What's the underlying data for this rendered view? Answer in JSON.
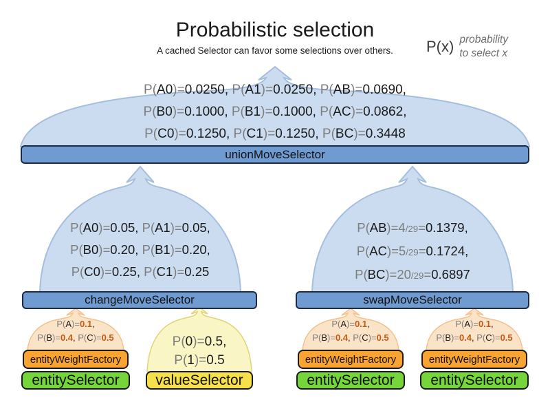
{
  "title": "Probabilistic selection",
  "subtitle": "A cached Selector can favor some selections over others.",
  "legend": {
    "symbol": "P(x)",
    "line1": "probability",
    "line2": "to select x"
  },
  "union": {
    "bar_label": "unionMoveSelector",
    "lines": [
      [
        {
          "t": "P(",
          "c": "g"
        },
        {
          "t": "A0",
          "c": "k"
        },
        {
          "t": ")=",
          "c": "g"
        },
        {
          "t": "0.0250, ",
          "c": "k"
        },
        {
          "t": "P(",
          "c": "g"
        },
        {
          "t": "A1",
          "c": "k"
        },
        {
          "t": ")=",
          "c": "g"
        },
        {
          "t": "0.0250, ",
          "c": "k"
        },
        {
          "t": "P(",
          "c": "g"
        },
        {
          "t": "AB",
          "c": "k"
        },
        {
          "t": ")=",
          "c": "g"
        },
        {
          "t": "0.0690,",
          "c": "k"
        }
      ],
      [
        {
          "t": "P(",
          "c": "g"
        },
        {
          "t": "B0",
          "c": "k"
        },
        {
          "t": ")=",
          "c": "g"
        },
        {
          "t": "0.1000, ",
          "c": "k"
        },
        {
          "t": "P(",
          "c": "g"
        },
        {
          "t": "B1",
          "c": "k"
        },
        {
          "t": ")=",
          "c": "g"
        },
        {
          "t": "0.1000, ",
          "c": "k"
        },
        {
          "t": "P(",
          "c": "g"
        },
        {
          "t": "AC",
          "c": "k"
        },
        {
          "t": ")=",
          "c": "g"
        },
        {
          "t": "0.0862,",
          "c": "k"
        }
      ],
      [
        {
          "t": "P(",
          "c": "g"
        },
        {
          "t": "C0",
          "c": "k"
        },
        {
          "t": ")=",
          "c": "g"
        },
        {
          "t": "0.1250, ",
          "c": "k"
        },
        {
          "t": "P(",
          "c": "g"
        },
        {
          "t": "C1",
          "c": "k"
        },
        {
          "t": ")=",
          "c": "g"
        },
        {
          "t": "0.1250, ",
          "c": "k"
        },
        {
          "t": "P(",
          "c": "g"
        },
        {
          "t": "BC",
          "c": "k"
        },
        {
          "t": ")=",
          "c": "g"
        },
        {
          "t": "0.3448",
          "c": "k"
        }
      ]
    ]
  },
  "change": {
    "bar_label": "changeMoveSelector",
    "lines": [
      [
        {
          "t": "P(",
          "c": "g"
        },
        {
          "t": "A0",
          "c": "k"
        },
        {
          "t": ")=",
          "c": "g"
        },
        {
          "t": "0.05, ",
          "c": "k"
        },
        {
          "t": "P(",
          "c": "g"
        },
        {
          "t": "A1",
          "c": "k"
        },
        {
          "t": ")=",
          "c": "g"
        },
        {
          "t": "0.05,",
          "c": "k"
        }
      ],
      [
        {
          "t": "P(",
          "c": "g"
        },
        {
          "t": "B0",
          "c": "k"
        },
        {
          "t": ")=",
          "c": "g"
        },
        {
          "t": "0.20, ",
          "c": "k"
        },
        {
          "t": "P(",
          "c": "g"
        },
        {
          "t": "B1",
          "c": "k"
        },
        {
          "t": ")=",
          "c": "g"
        },
        {
          "t": "0.20,",
          "c": "k"
        }
      ],
      [
        {
          "t": "P(",
          "c": "g"
        },
        {
          "t": "C0",
          "c": "k"
        },
        {
          "t": ")=",
          "c": "g"
        },
        {
          "t": "0.25, ",
          "c": "k"
        },
        {
          "t": "P(",
          "c": "g"
        },
        {
          "t": "C1",
          "c": "k"
        },
        {
          "t": ")=",
          "c": "g"
        },
        {
          "t": "0.25",
          "c": "k"
        }
      ]
    ]
  },
  "swap": {
    "bar_label": "swapMoveSelector",
    "lines": [
      [
        {
          "t": "P(",
          "c": "g"
        },
        {
          "t": "AB",
          "c": "k"
        },
        {
          "t": ")=",
          "c": "g"
        },
        {
          "t": "4",
          "c": "g"
        },
        {
          "t": "/29",
          "c": "s"
        },
        {
          "t": "=",
          "c": "g"
        },
        {
          "t": "0.1379,",
          "c": "k"
        }
      ],
      [
        {
          "t": "P(",
          "c": "g"
        },
        {
          "t": "AC",
          "c": "k"
        },
        {
          "t": ")=",
          "c": "g"
        },
        {
          "t": "5",
          "c": "g"
        },
        {
          "t": "/29",
          "c": "s"
        },
        {
          "t": "=",
          "c": "g"
        },
        {
          "t": "0.1724,",
          "c": "k"
        }
      ],
      [
        {
          "t": "P(",
          "c": "g"
        },
        {
          "t": "BC",
          "c": "k"
        },
        {
          "t": ")=",
          "c": "g"
        },
        {
          "t": "20",
          "c": "g"
        },
        {
          "t": "/29",
          "c": "s"
        },
        {
          "t": "=",
          "c": "g"
        },
        {
          "t": "0.6897",
          "c": "k"
        }
      ]
    ]
  },
  "weight_arch": {
    "bar_label": "entityWeightFactory",
    "lines": [
      [
        {
          "t": "P(",
          "c": "g"
        },
        {
          "t": "A",
          "c": "k"
        },
        {
          "t": ")=",
          "c": "g"
        },
        {
          "t": "0.1",
          "c": "o"
        },
        {
          "t": ",",
          "c": "k"
        }
      ],
      [
        {
          "t": "P(",
          "c": "g"
        },
        {
          "t": "B",
          "c": "k"
        },
        {
          "t": ")=",
          "c": "g"
        },
        {
          "t": "0.4",
          "c": "o"
        },
        {
          "t": ", ",
          "c": "k"
        },
        {
          "t": "P(",
          "c": "g"
        },
        {
          "t": "C",
          "c": "k"
        },
        {
          "t": ")=",
          "c": "g"
        },
        {
          "t": "0.5",
          "c": "o"
        }
      ]
    ]
  },
  "entity_selector": {
    "bar_label": "entitySelector"
  },
  "value_arch": {
    "bar_label": "valueSelector",
    "lines": [
      [
        {
          "t": "P(",
          "c": "g"
        },
        {
          "t": "0",
          "c": "k"
        },
        {
          "t": ")=",
          "c": "g"
        },
        {
          "t": "0.5,",
          "c": "k"
        }
      ],
      [
        {
          "t": "P(",
          "c": "g"
        },
        {
          "t": "1",
          "c": "k"
        },
        {
          "t": ")=",
          "c": "g"
        },
        {
          "t": "0.5",
          "c": "k"
        }
      ]
    ]
  },
  "colors": {
    "dome_fill": "#cbdcf0",
    "dome_stroke": "#a6bedd",
    "bar_blue": "#6f9bd1",
    "bar_orange": "#f9a432",
    "bar_green": "#76d53a",
    "bar_yellow": "#f6e14b",
    "arch_orange_fill": "#fbe3c8",
    "arch_yellow_fill": "#faf5c4",
    "gray_text": "#7d7d7d",
    "orange_value_text": "#c45911"
  }
}
